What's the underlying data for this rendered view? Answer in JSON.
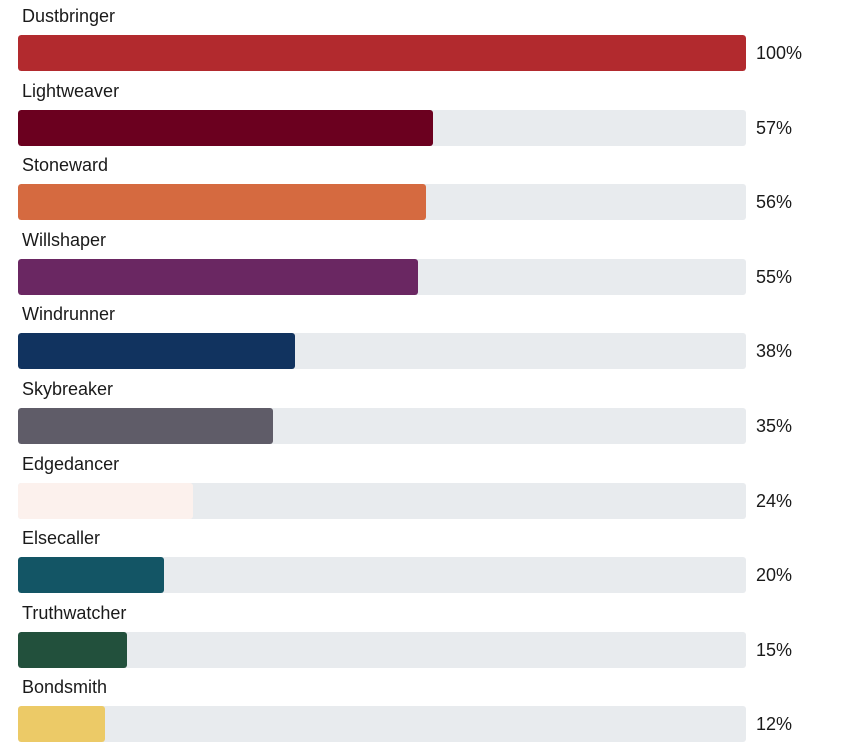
{
  "chart_data": {
    "type": "bar",
    "orientation": "horizontal",
    "xlim": [
      0,
      100
    ],
    "grid": false,
    "categories": [
      "Dustbringer",
      "Lightweaver",
      "Stoneward",
      "Willshaper",
      "Windrunner",
      "Skybreaker",
      "Edgedancer",
      "Elsecaller",
      "Truthwatcher",
      "Bondsmith"
    ],
    "values": [
      100,
      57,
      56,
      55,
      38,
      35,
      24,
      20,
      15,
      12
    ],
    "value_labels": [
      "100%",
      "57%",
      "56%",
      "55%",
      "38%",
      "35%",
      "24%",
      "20%",
      "15%",
      "12%"
    ],
    "colors": [
      "#b22a2e",
      "#6b001f",
      "#d56a40",
      "#6a2762",
      "#11335f",
      "#5f5c68",
      "#fcf1ed",
      "#135565",
      "#22503c",
      "#ecca67"
    ],
    "track_color": "#e8ebee"
  }
}
